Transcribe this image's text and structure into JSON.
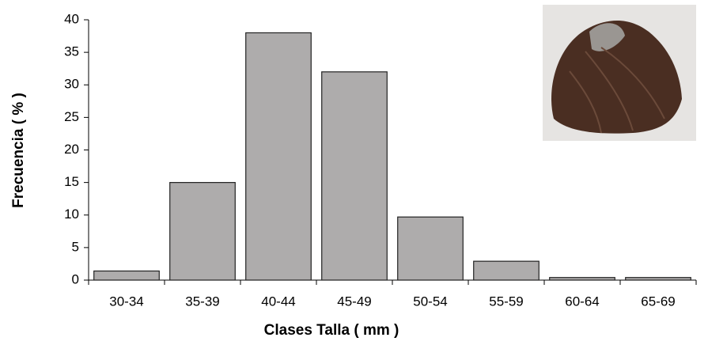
{
  "chart_data": {
    "type": "bar",
    "x_label": "Clases Talla ( mm )",
    "y_label": "Frecuencia ( % )",
    "categories": [
      "30-34",
      "35-39",
      "40-44",
      "45-49",
      "50-54",
      "55-59",
      "60-64",
      "65-69"
    ],
    "values": [
      1.4,
      15,
      38,
      32,
      9.7,
      2.9,
      0.4,
      0.4
    ],
    "color": "#aeacac",
    "ylim": [
      0,
      40
    ],
    "yticks": [
      0,
      5,
      10,
      15,
      20,
      25,
      30,
      35,
      40
    ],
    "grid": false
  }
}
